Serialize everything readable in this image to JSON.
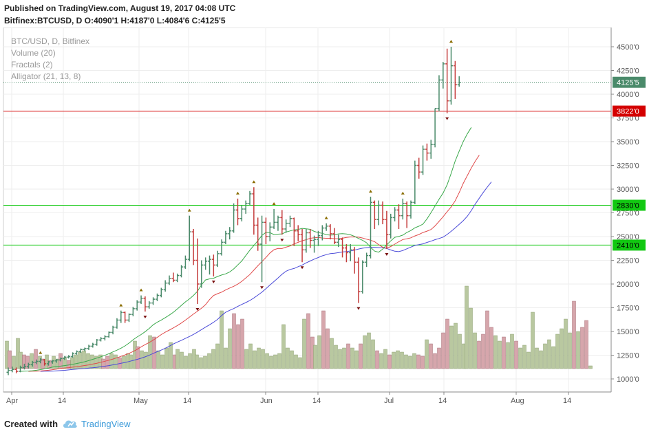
{
  "header": {
    "published": "Published on TradingView.com, August 19, 2017 04:08 UTC",
    "ohlc_line": "Bitfinex:BTCUSD, D  O:4090'1 H:4187'0 L:4084'6 C:4125'5"
  },
  "footer": {
    "created_with": "Created with",
    "brand": "TradingView",
    "logo_icon": "tradingview-cloud-icon"
  },
  "colors": {
    "bull": "#4a8a6a",
    "bear": "#c43c3c",
    "vol_bull": "#b9c8a0",
    "vol_bear": "#d6a6ac",
    "jaw": "#4a4ad8",
    "teeth": "#e04a4a",
    "lips": "#3aa84a",
    "fractal_up": "#8a6d00",
    "fractal_down": "#7a1010",
    "hline_red": "#d40000",
    "hline_green": "#12c812",
    "last": "#4a8a6a"
  },
  "chart_data": {
    "type": "line",
    "title": "BTC/USD, D, Bitfinex",
    "legend": [
      "BTC/USD, D, Bitfinex",
      "Volume (20)",
      "Fractals (2)",
      "Alligator (21, 13, 8)"
    ],
    "legend_position": "top-left",
    "x_ticks": [
      "Apr",
      "14",
      "May",
      "14",
      "Jun",
      "14",
      "Jul",
      "14",
      "Aug",
      "14"
    ],
    "y_ticks": [
      "1000'0",
      "1250'0",
      "1500'0",
      "1750'0",
      "2000'0",
      "2250'0",
      "2500'0",
      "2750'0",
      "3000'0",
      "3250'0",
      "3500'0",
      "3750'0",
      "4000'0",
      "4250'0",
      "4500'0"
    ],
    "ylim": [
      800,
      4650
    ],
    "grid": true,
    "horizontal_lines": [
      {
        "value": 3822,
        "label": "3822'0",
        "color": "red"
      },
      {
        "value": 2830,
        "label": "2830'0",
        "color": "green"
      },
      {
        "value": 2410,
        "label": "2410'0",
        "color": "green"
      }
    ],
    "last_price": {
      "value": 4125.5,
      "label": "4125'5"
    },
    "ohlc_daily": [
      [
        1070,
        1120,
        1040,
        1090
      ],
      [
        1090,
        1130,
        1070,
        1100
      ],
      [
        1100,
        1120,
        1060,
        1080
      ],
      [
        1080,
        1140,
        1070,
        1120
      ],
      [
        1120,
        1160,
        1100,
        1130
      ],
      [
        1130,
        1170,
        1110,
        1150
      ],
      [
        1150,
        1190,
        1130,
        1175
      ],
      [
        1175,
        1205,
        1155,
        1185
      ],
      [
        1185,
        1220,
        1165,
        1200
      ],
      [
        1200,
        1210,
        1140,
        1160
      ],
      [
        1160,
        1190,
        1140,
        1180
      ],
      [
        1180,
        1200,
        1160,
        1190
      ],
      [
        1190,
        1210,
        1170,
        1200
      ],
      [
        1200,
        1225,
        1185,
        1215
      ],
      [
        1215,
        1240,
        1200,
        1230
      ],
      [
        1230,
        1250,
        1215,
        1235
      ],
      [
        1235,
        1280,
        1225,
        1270
      ],
      [
        1270,
        1300,
        1255,
        1290
      ],
      [
        1290,
        1320,
        1275,
        1310
      ],
      [
        1310,
        1330,
        1290,
        1320
      ],
      [
        1320,
        1360,
        1305,
        1345
      ],
      [
        1345,
        1380,
        1330,
        1365
      ],
      [
        1365,
        1420,
        1350,
        1410
      ],
      [
        1410,
        1440,
        1395,
        1425
      ],
      [
        1425,
        1460,
        1405,
        1445
      ],
      [
        1445,
        1500,
        1435,
        1490
      ],
      [
        1490,
        1560,
        1470,
        1545
      ],
      [
        1545,
        1640,
        1530,
        1620
      ],
      [
        1620,
        1720,
        1590,
        1700
      ],
      [
        1700,
        1710,
        1590,
        1620
      ],
      [
        1620,
        1690,
        1600,
        1680
      ],
      [
        1680,
        1760,
        1660,
        1740
      ],
      [
        1740,
        1830,
        1720,
        1810
      ],
      [
        1810,
        1880,
        1790,
        1850
      ],
      [
        1850,
        1870,
        1710,
        1760
      ],
      [
        1760,
        1820,
        1740,
        1800
      ],
      [
        1800,
        1860,
        1780,
        1840
      ],
      [
        1840,
        1900,
        1820,
        1880
      ],
      [
        1880,
        1960,
        1860,
        1940
      ],
      [
        1940,
        2040,
        1920,
        2010
      ],
      [
        2010,
        2090,
        1990,
        2060
      ],
      [
        2060,
        2120,
        2020,
        2040
      ],
      [
        2040,
        2110,
        2020,
        2090
      ],
      [
        2090,
        2200,
        2070,
        2180
      ],
      [
        2180,
        2300,
        2160,
        2260
      ],
      [
        2260,
        2720,
        2240,
        2550
      ],
      [
        2550,
        2580,
        2200,
        2250
      ],
      [
        2250,
        2480,
        1790,
        2000
      ],
      [
        2000,
        2250,
        1960,
        2200
      ],
      [
        2200,
        2280,
        2150,
        2240
      ],
      [
        2240,
        2300,
        2100,
        2260
      ],
      [
        2260,
        2310,
        2080,
        2200
      ],
      [
        2200,
        2350,
        2180,
        2320
      ],
      [
        2320,
        2470,
        2300,
        2440
      ],
      [
        2440,
        2560,
        2420,
        2530
      ],
      [
        2530,
        2600,
        2470,
        2560
      ],
      [
        2560,
        2850,
        2540,
        2780
      ],
      [
        2780,
        2900,
        2620,
        2690
      ],
      [
        2690,
        2830,
        2660,
        2790
      ],
      [
        2790,
        2880,
        2740,
        2850
      ],
      [
        2850,
        2980,
        2830,
        2950
      ],
      [
        2950,
        3020,
        2520,
        2620
      ],
      [
        2620,
        2700,
        2350,
        2420
      ],
      [
        2420,
        2720,
        2020,
        2650
      ],
      [
        2650,
        2700,
        2420,
        2500
      ],
      [
        2500,
        2650,
        2450,
        2600
      ],
      [
        2600,
        2790,
        2580,
        2650
      ],
      [
        2650,
        2720,
        2560,
        2700
      ],
      [
        2700,
        2780,
        2520,
        2580
      ],
      [
        2580,
        2680,
        2540,
        2640
      ],
      [
        2640,
        2720,
        2600,
        2690
      ],
      [
        2690,
        2700,
        2400,
        2560
      ],
      [
        2560,
        2620,
        2450,
        2520
      ],
      [
        2520,
        2580,
        2230,
        2360
      ],
      [
        2360,
        2580,
        2330,
        2540
      ],
      [
        2540,
        2580,
        2380,
        2460
      ],
      [
        2460,
        2510,
        2330,
        2470
      ],
      [
        2470,
        2560,
        2400,
        2510
      ],
      [
        2510,
        2620,
        2460,
        2590
      ],
      [
        2590,
        2640,
        2560,
        2610
      ],
      [
        2610,
        2630,
        2470,
        2530
      ],
      [
        2530,
        2590,
        2420,
        2440
      ],
      [
        2440,
        2520,
        2390,
        2470
      ],
      [
        2470,
        2490,
        2280,
        2380
      ],
      [
        2380,
        2420,
        2230,
        2330
      ],
      [
        2330,
        2420,
        2240,
        2360
      ],
      [
        2360,
        2390,
        2110,
        2230
      ],
      [
        2230,
        2280,
        1800,
        1920
      ],
      [
        1920,
        2250,
        1900,
        2230
      ],
      [
        2230,
        2330,
        2180,
        2300
      ],
      [
        2300,
        2920,
        2270,
        2860
      ],
      [
        2860,
        2880,
        2580,
        2680
      ],
      [
        2680,
        2880,
        2620,
        2830
      ],
      [
        2830,
        2870,
        2630,
        2680
      ],
      [
        2680,
        2770,
        2370,
        2520
      ],
      [
        2520,
        2740,
        2480,
        2700
      ],
      [
        2700,
        2810,
        2660,
        2780
      ],
      [
        2780,
        2840,
        2580,
        2720
      ],
      [
        2720,
        2900,
        2680,
        2850
      ],
      [
        2850,
        2870,
        2590,
        2720
      ],
      [
        2720,
        2880,
        2690,
        2860
      ],
      [
        2860,
        3300,
        2840,
        3250
      ],
      [
        3250,
        3330,
        3110,
        3180
      ],
      [
        3180,
        3460,
        3150,
        3420
      ],
      [
        3420,
        3480,
        3300,
        3380
      ],
      [
        3380,
        3520,
        3320,
        3470
      ],
      [
        3470,
        3850,
        3440,
        3850
      ],
      [
        3850,
        4200,
        3820,
        4150
      ],
      [
        4150,
        4340,
        4060,
        4320
      ],
      [
        4320,
        4480,
        3800,
        3930
      ],
      [
        3930,
        4500,
        3890,
        4300
      ],
      [
        4300,
        4350,
        3950,
        4100
      ],
      [
        4100,
        4190,
        4080,
        4125
      ]
    ],
    "volume_bars": [
      {
        "x": 10,
        "h": 40,
        "v": 1
      },
      {
        "x": 14,
        "h": 26,
        "v": 0
      },
      {
        "x": 20,
        "h": 18,
        "v": 1
      },
      {
        "x": 26,
        "h": 44,
        "v": 1
      },
      {
        "x": 30,
        "h": 24,
        "v": 1
      },
      {
        "x": 35,
        "h": 20,
        "v": 0
      },
      {
        "x": 40,
        "h": 18,
        "v": 0
      },
      {
        "x": 46,
        "h": 22,
        "v": 1
      },
      {
        "x": 52,
        "h": 28,
        "v": 0
      },
      {
        "x": 58,
        "h": 18,
        "v": 1
      },
      {
        "x": 62,
        "h": 14,
        "v": 0
      },
      {
        "x": 68,
        "h": 20,
        "v": 1
      },
      {
        "x": 72,
        "h": 12,
        "v": 0
      },
      {
        "x": 78,
        "h": 18,
        "v": 1
      },
      {
        "x": 84,
        "h": 14,
        "v": 1
      },
      {
        "x": 88,
        "h": 22,
        "v": 0
      },
      {
        "x": 94,
        "h": 16,
        "v": 1
      },
      {
        "x": 100,
        "h": 12,
        "v": 0
      },
      {
        "x": 105,
        "h": 16,
        "v": 1
      },
      {
        "x": 110,
        "h": 20,
        "v": 1
      },
      {
        "x": 116,
        "h": 24,
        "v": 1
      },
      {
        "x": 122,
        "h": 26,
        "v": 1
      },
      {
        "x": 128,
        "h": 22,
        "v": 1
      },
      {
        "x": 134,
        "h": 20,
        "v": 1
      },
      {
        "x": 140,
        "h": 18,
        "v": 1
      },
      {
        "x": 146,
        "h": 20,
        "v": 1
      },
      {
        "x": 150,
        "h": 14,
        "v": 0
      },
      {
        "x": 156,
        "h": 18,
        "v": 0
      },
      {
        "x": 162,
        "h": 22,
        "v": 1
      },
      {
        "x": 168,
        "h": 20,
        "v": 1
      },
      {
        "x": 174,
        "h": 16,
        "v": 0
      },
      {
        "x": 180,
        "h": 18,
        "v": 1
      },
      {
        "x": 186,
        "h": 22,
        "v": 1
      },
      {
        "x": 190,
        "h": 20,
        "v": 1
      },
      {
        "x": 196,
        "h": 40,
        "v": 1
      },
      {
        "x": 200,
        "h": 32,
        "v": 0
      },
      {
        "x": 206,
        "h": 26,
        "v": 1
      },
      {
        "x": 212,
        "h": 24,
        "v": 1
      },
      {
        "x": 218,
        "h": 48,
        "v": 1
      },
      {
        "x": 224,
        "h": 46,
        "v": 0
      },
      {
        "x": 230,
        "h": 26,
        "v": 1
      },
      {
        "x": 236,
        "h": 20,
        "v": 1
      },
      {
        "x": 242,
        "h": 30,
        "v": 1
      },
      {
        "x": 248,
        "h": 38,
        "v": 1
      },
      {
        "x": 254,
        "h": 20,
        "v": 0
      },
      {
        "x": 258,
        "h": 28,
        "v": 1
      },
      {
        "x": 264,
        "h": 24,
        "v": 1
      },
      {
        "x": 270,
        "h": 18,
        "v": 1
      },
      {
        "x": 276,
        "h": 22,
        "v": 1
      },
      {
        "x": 282,
        "h": 28,
        "v": 1
      },
      {
        "x": 286,
        "h": 20,
        "v": 1
      },
      {
        "x": 292,
        "h": 16,
        "v": 1
      },
      {
        "x": 298,
        "h": 18,
        "v": 1
      },
      {
        "x": 304,
        "h": 22,
        "v": 1
      },
      {
        "x": 310,
        "h": 28,
        "v": 1
      },
      {
        "x": 316,
        "h": 36,
        "v": 1
      },
      {
        "x": 322,
        "h": 84,
        "v": 1
      },
      {
        "x": 328,
        "h": 30,
        "v": 1
      },
      {
        "x": 334,
        "h": 58,
        "v": 1
      },
      {
        "x": 340,
        "h": 80,
        "v": 0
      },
      {
        "x": 346,
        "h": 64,
        "v": 0
      },
      {
        "x": 352,
        "h": 72,
        "v": 0
      },
      {
        "x": 358,
        "h": 28,
        "v": 1
      },
      {
        "x": 364,
        "h": 36,
        "v": 1
      },
      {
        "x": 370,
        "h": 26,
        "v": 1
      },
      {
        "x": 376,
        "h": 30,
        "v": 1
      },
      {
        "x": 382,
        "h": 28,
        "v": 1
      },
      {
        "x": 388,
        "h": 22,
        "v": 1
      },
      {
        "x": 394,
        "h": 18,
        "v": 1
      },
      {
        "x": 400,
        "h": 20,
        "v": 1
      },
      {
        "x": 406,
        "h": 22,
        "v": 1
      },
      {
        "x": 412,
        "h": 64,
        "v": 1
      },
      {
        "x": 418,
        "h": 30,
        "v": 1
      },
      {
        "x": 424,
        "h": 26,
        "v": 1
      },
      {
        "x": 430,
        "h": 20,
        "v": 1
      },
      {
        "x": 436,
        "h": 16,
        "v": 1
      },
      {
        "x": 442,
        "h": 72,
        "v": 1
      },
      {
        "x": 448,
        "h": 80,
        "v": 0
      },
      {
        "x": 454,
        "h": 46,
        "v": 0
      },
      {
        "x": 458,
        "h": 34,
        "v": 1
      },
      {
        "x": 464,
        "h": 48,
        "v": 1
      },
      {
        "x": 470,
        "h": 84,
        "v": 0
      },
      {
        "x": 476,
        "h": 58,
        "v": 0
      },
      {
        "x": 482,
        "h": 44,
        "v": 1
      },
      {
        "x": 488,
        "h": 34,
        "v": 1
      },
      {
        "x": 494,
        "h": 28,
        "v": 1
      },
      {
        "x": 500,
        "h": 30,
        "v": 1
      },
      {
        "x": 506,
        "h": 36,
        "v": 0
      },
      {
        "x": 512,
        "h": 30,
        "v": 1
      },
      {
        "x": 518,
        "h": 26,
        "v": 1
      },
      {
        "x": 524,
        "h": 36,
        "v": 0
      },
      {
        "x": 530,
        "h": 48,
        "v": 1
      },
      {
        "x": 536,
        "h": 52,
        "v": 1
      },
      {
        "x": 542,
        "h": 42,
        "v": 1
      },
      {
        "x": 548,
        "h": 26,
        "v": 0
      },
      {
        "x": 554,
        "h": 22,
        "v": 1
      },
      {
        "x": 560,
        "h": 28,
        "v": 1
      },
      {
        "x": 566,
        "h": 20,
        "v": 0
      },
      {
        "x": 572,
        "h": 24,
        "v": 1
      },
      {
        "x": 578,
        "h": 26,
        "v": 1
      },
      {
        "x": 584,
        "h": 24,
        "v": 1
      },
      {
        "x": 590,
        "h": 20,
        "v": 1
      },
      {
        "x": 596,
        "h": 18,
        "v": 1
      },
      {
        "x": 602,
        "h": 22,
        "v": 1
      },
      {
        "x": 608,
        "h": 20,
        "v": 0
      },
      {
        "x": 614,
        "h": 18,
        "v": 0
      },
      {
        "x": 620,
        "h": 42,
        "v": 1
      },
      {
        "x": 626,
        "h": 36,
        "v": 0
      },
      {
        "x": 632,
        "h": 22,
        "v": 0
      },
      {
        "x": 638,
        "h": 30,
        "v": 0
      },
      {
        "x": 644,
        "h": 52,
        "v": 0
      },
      {
        "x": 650,
        "h": 72,
        "v": 0
      },
      {
        "x": 656,
        "h": 62,
        "v": 1
      },
      {
        "x": 662,
        "h": 66,
        "v": 1
      },
      {
        "x": 668,
        "h": 50,
        "v": 1
      },
      {
        "x": 674,
        "h": 36,
        "v": 1
      },
      {
        "x": 678,
        "h": 120,
        "v": 1
      },
      {
        "x": 684,
        "h": 88,
        "v": 1
      },
      {
        "x": 690,
        "h": 52,
        "v": 1
      },
      {
        "x": 696,
        "h": 40,
        "v": 0
      },
      {
        "x": 702,
        "h": 50,
        "v": 0
      },
      {
        "x": 708,
        "h": 84,
        "v": 0
      },
      {
        "x": 714,
        "h": 60,
        "v": 0
      },
      {
        "x": 720,
        "h": 48,
        "v": 1
      },
      {
        "x": 726,
        "h": 40,
        "v": 1
      },
      {
        "x": 732,
        "h": 46,
        "v": 0
      },
      {
        "x": 738,
        "h": 38,
        "v": 1
      },
      {
        "x": 744,
        "h": 50,
        "v": 1
      },
      {
        "x": 750,
        "h": 40,
        "v": 0
      },
      {
        "x": 756,
        "h": 30,
        "v": 1
      },
      {
        "x": 762,
        "h": 34,
        "v": 1
      },
      {
        "x": 768,
        "h": 24,
        "v": 1
      },
      {
        "x": 774,
        "h": 82,
        "v": 1
      },
      {
        "x": 780,
        "h": 30,
        "v": 1
      },
      {
        "x": 786,
        "h": 26,
        "v": 1
      },
      {
        "x": 792,
        "h": 36,
        "v": 1
      },
      {
        "x": 798,
        "h": 42,
        "v": 1
      },
      {
        "x": 804,
        "h": 32,
        "v": 1
      },
      {
        "x": 810,
        "h": 50,
        "v": 1
      },
      {
        "x": 816,
        "h": 58,
        "v": 1
      },
      {
        "x": 822,
        "h": 72,
        "v": 1
      },
      {
        "x": 828,
        "h": 52,
        "v": 1
      },
      {
        "x": 834,
        "h": 98,
        "v": 0
      },
      {
        "x": 840,
        "h": 54,
        "v": 1
      },
      {
        "x": 846,
        "h": 60,
        "v": 0
      },
      {
        "x": 852,
        "h": 70,
        "v": 0
      },
      {
        "x": 858,
        "h": 4,
        "v": 1
      }
    ]
  }
}
